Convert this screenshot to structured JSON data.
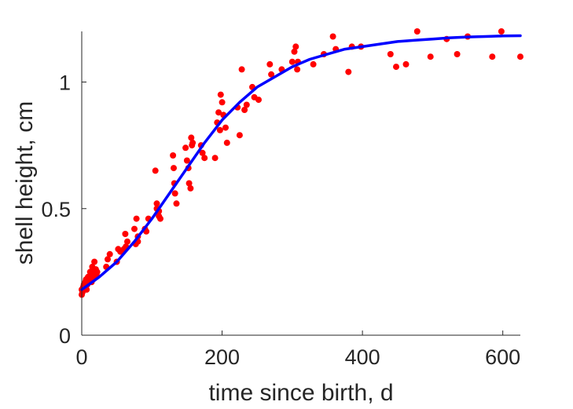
{
  "chart_data": {
    "type": "scatter",
    "title": "",
    "xlabel": "time since birth, d",
    "ylabel": "shell height, cm",
    "xlim": [
      0,
      625
    ],
    "ylim": [
      0,
      1.2
    ],
    "grid": false,
    "legend": "none",
    "xticks": [
      0,
      200,
      400,
      600
    ],
    "xtick_labels": [
      "0",
      "200",
      "400",
      "600"
    ],
    "yticks": [
      0,
      0.5,
      1
    ],
    "ytick_labels": [
      "0",
      "0.5",
      "1"
    ],
    "colors": {
      "points": "#ff0000",
      "fit": "#0000ff",
      "axes": "#262626"
    },
    "series": [
      {
        "type": "scatter",
        "x": [
          0,
          0,
          1,
          2,
          3,
          5,
          6,
          7,
          8,
          9,
          10,
          11,
          12,
          13,
          14,
          15,
          16,
          17,
          18,
          19,
          20,
          21,
          22,
          35,
          37,
          40,
          50,
          52,
          55,
          60,
          62,
          63,
          65,
          75,
          77,
          78,
          80,
          80,
          90,
          92,
          95,
          105,
          107,
          107,
          110,
          110,
          112,
          130,
          131,
          132,
          133,
          135,
          148,
          150,
          152,
          153,
          155,
          156,
          157,
          158,
          170,
          172,
          175,
          190,
          193,
          195,
          197,
          198,
          200,
          202,
          205,
          207,
          222,
          225,
          228,
          232,
          235,
          243,
          246,
          252,
          268,
          270,
          285,
          300,
          303,
          305,
          307,
          308,
          330,
          345,
          358,
          362,
          380,
          385,
          398,
          440,
          448,
          462,
          478,
          497,
          520,
          535,
          550,
          585,
          598,
          625
        ],
        "y": [
          0.16,
          0.18,
          0.17,
          0.19,
          0.2,
          0.21,
          0.22,
          0.18,
          0.2,
          0.23,
          0.22,
          0.21,
          0.25,
          0.24,
          0.21,
          0.27,
          0.22,
          0.25,
          0.29,
          0.23,
          0.26,
          0.24,
          0.25,
          0.27,
          0.3,
          0.32,
          0.29,
          0.34,
          0.33,
          0.34,
          0.4,
          0.35,
          0.37,
          0.42,
          0.36,
          0.46,
          0.37,
          0.39,
          0.42,
          0.41,
          0.46,
          0.65,
          0.5,
          0.52,
          0.49,
          0.47,
          0.46,
          0.71,
          0.66,
          0.6,
          0.56,
          0.52,
          0.74,
          0.69,
          0.66,
          0.6,
          0.58,
          0.78,
          0.75,
          0.76,
          0.75,
          0.72,
          0.7,
          0.7,
          0.84,
          0.88,
          0.81,
          0.95,
          0.92,
          0.87,
          0.82,
          0.76,
          0.9,
          0.79,
          1.05,
          0.89,
          0.91,
          0.98,
          0.94,
          0.93,
          1.07,
          1.03,
          1.05,
          1.08,
          1.12,
          1.14,
          1.05,
          1.08,
          1.07,
          1.11,
          1.18,
          1.13,
          1.04,
          1.14,
          1.14,
          1.11,
          1.06,
          1.07,
          1.2,
          1.1,
          1.17,
          1.11,
          1.18,
          1.1,
          1.2,
          1.1
        ]
      },
      {
        "type": "line",
        "x": [
          0,
          25,
          50,
          75,
          100,
          125,
          150,
          175,
          200,
          225,
          250,
          275,
          300,
          325,
          350,
          375,
          400,
          425,
          450,
          475,
          500,
          525,
          550,
          575,
          600,
          625
        ],
        "y": [
          0.18,
          0.23,
          0.29,
          0.37,
          0.46,
          0.56,
          0.66,
          0.76,
          0.85,
          0.92,
          0.98,
          1.02,
          1.06,
          1.09,
          1.11,
          1.13,
          1.14,
          1.15,
          1.16,
          1.165,
          1.17,
          1.175,
          1.178,
          1.18,
          1.182,
          1.183
        ]
      }
    ]
  }
}
